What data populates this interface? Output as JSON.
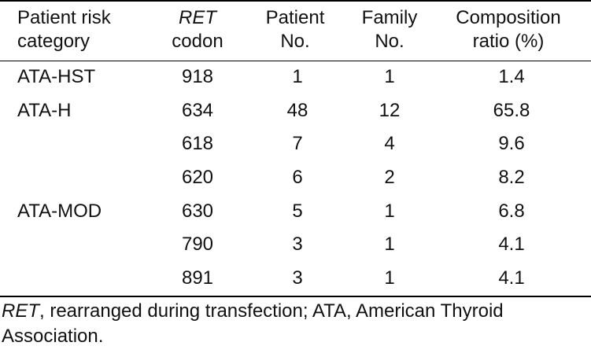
{
  "header": {
    "category_line1": "Patient risk",
    "category_line2": "category",
    "codon_line1": "RET",
    "codon_line2": "codon",
    "patient_line1": "Patient",
    "patient_line2": "No.",
    "family_line1": "Family",
    "family_line2": "No.",
    "ratio_line1": "Composition",
    "ratio_line2": "ratio (%)"
  },
  "rows": [
    {
      "category": "ATA-HST",
      "codon": "918",
      "patient": "1",
      "family": "1",
      "ratio": "1.4"
    },
    {
      "category": "ATA-H",
      "codon": "634",
      "patient": "48",
      "family": "12",
      "ratio": "65.8"
    },
    {
      "category": "",
      "codon": "618",
      "patient": "7",
      "family": "4",
      "ratio": "9.6"
    },
    {
      "category": "",
      "codon": "620",
      "patient": "6",
      "family": "2",
      "ratio": "8.2"
    },
    {
      "category": "ATA-MOD",
      "codon": "630",
      "patient": "5",
      "family": "1",
      "ratio": "6.8"
    },
    {
      "category": "",
      "codon": "790",
      "patient": "3",
      "family": "1",
      "ratio": "4.1"
    },
    {
      "category": "",
      "codon": "891",
      "patient": "3",
      "family": "1",
      "ratio": "4.1"
    }
  ],
  "footnote": {
    "abbr": "RET",
    "text": ", rearranged during transfection; ATA, American Thyroid Association."
  }
}
